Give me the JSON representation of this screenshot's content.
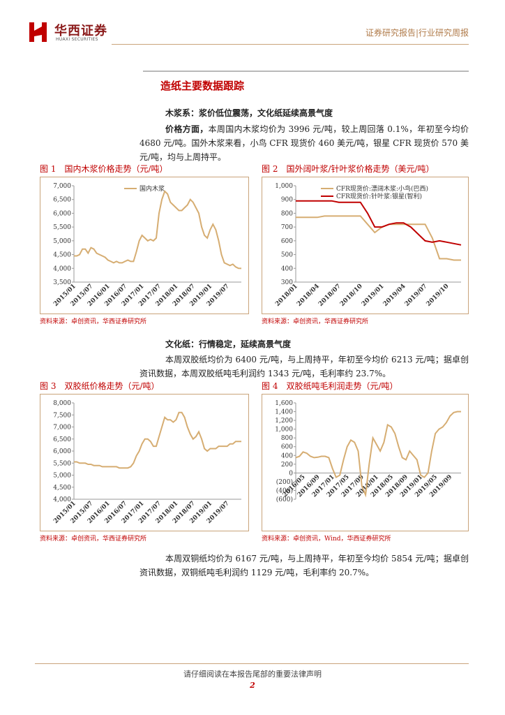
{
  "header": {
    "brand": "华西证券",
    "brand_en": "HUAXI SECURITIES",
    "report_type": "证券研究报告|行业研究周报"
  },
  "section_title": "造纸主要数据跟踪",
  "subheadings": [
    "木浆系：浆价低位震荡，文化纸延续高景气度",
    "文化纸：行情稳定，延续高景气度"
  ],
  "paragraphs": [
    {
      "lead": "价格方面，",
      "text": "本周国内木浆均价为 3996 元/吨，较上周回落 0.1%，年初至今均价 4680 元/吨。国外木浆来看，小鸟 CFR 现货价 460 美元/吨，银星 CFR 现货价 570 美元/吨，均与上周持平。"
    },
    {
      "text": "本周双胶纸均价为 6400 元/吨，与上周持平，年初至今均价 6213 元/吨；据卓创资讯数据，本周双胶纸吨毛利润约 1343 元/吨，毛利率约 23.7%。"
    },
    {
      "text": "本周双铜纸均价为 6167 元/吨，与上周持平，年初至今均价 5854 元/吨；据卓创资讯数据，双铜纸吨毛利润约 1129 元/吨，毛利率约 20.7%。"
    }
  ],
  "figures": [
    {
      "caption": "图 1　国内木浆价格走势（元/吨）",
      "source": "资料来源：卓创资讯，华西证券研究所",
      "chart": {
        "type": "line",
        "legend": "top",
        "categories": [
          "2015/01",
          null,
          null,
          null,
          null,
          null,
          "2015/07",
          null,
          null,
          null,
          null,
          null,
          "2016/01",
          null,
          null,
          null,
          null,
          null,
          "2016/07",
          null,
          null,
          null,
          null,
          null,
          "2017/01",
          null,
          null,
          null,
          null,
          null,
          "2017/07",
          null,
          null,
          null,
          null,
          null,
          "2018/01",
          null,
          null,
          null,
          null,
          null,
          "2018/07",
          null,
          null,
          null,
          null,
          null,
          "2019/01",
          null,
          null,
          null,
          null,
          null,
          "2019/07",
          null,
          null,
          null,
          null,
          null
        ],
        "series": [
          {
            "name": "国内木浆",
            "color": "#d6ad72",
            "values": [
              4450,
              4450,
              4500,
              4700,
              4700,
              4550,
              4750,
              4700,
              4550,
              4500,
              4450,
              4400,
              4300,
              4250,
              4200,
              4250,
              4200,
              4200,
              4250,
              4300,
              4250,
              4250,
              4600,
              5000,
              5200,
              5100,
              5000,
              5050,
              5000,
              5100,
              6000,
              6500,
              6800,
              6700,
              6400,
              6300,
              6200,
              6100,
              6100,
              6200,
              6300,
              6500,
              6400,
              6200,
              6000,
              5500,
              5200,
              5100,
              5400,
              5600,
              5400,
              5000,
              4500,
              4200,
              4150,
              4100,
              4150,
              4050,
              4000,
              3996
            ]
          }
        ],
        "ylim": [
          3500,
          7000
        ],
        "yticks": [
          {
            "value": 3500,
            "label": "3,500"
          },
          {
            "value": 4000,
            "label": "4,000"
          },
          {
            "value": 4500,
            "label": "4,500"
          },
          {
            "value": 5000,
            "label": "5,000"
          },
          {
            "value": 5500,
            "label": "5,500"
          },
          {
            "value": 6000,
            "label": "6,000"
          },
          {
            "value": 6500,
            "label": "6,500"
          },
          {
            "value": 7000,
            "label": "7,000"
          }
        ],
        "grid": false
      }
    },
    {
      "caption": "图 2　国外阔叶浆/针叶浆价格走势（美元/吨）",
      "source": "资料来源：卓创资讯，华西证券研究所",
      "chart": {
        "type": "line",
        "legend": "top-left",
        "categories": [
          "2018/01",
          null,
          null,
          "2018/04",
          null,
          null,
          "2018/07",
          null,
          null,
          "2018/10",
          null,
          null,
          "2019/01",
          null,
          null,
          "2019/04",
          null,
          null,
          "2019/07",
          null,
          null,
          "2019/10",
          null,
          null
        ],
        "series": [
          {
            "name": "CFR现货价:漂阔木浆:小鸟(巴西)",
            "color": "#d6ad72",
            "values": [
              770,
              770,
              770,
              770,
              780,
              780,
              780,
              780,
              780,
              780,
              720,
              660,
              700,
              720,
              720,
              720,
              720,
              720,
              720,
              620,
              470,
              470,
              460,
              460
            ]
          },
          {
            "name": "CFR现货价:针叶浆:银星(智利)",
            "color": "#c00000",
            "values": [
              890,
              890,
              890,
              890,
              890,
              890,
              880,
              880,
              880,
              880,
              800,
              700,
              700,
              720,
              730,
              730,
              700,
              650,
              600,
              590,
              600,
              590,
              580,
              570
            ]
          }
        ],
        "ylim": [
          300,
          1000
        ],
        "yticks": [
          300,
          400,
          500,
          600,
          700,
          800,
          900,
          {
            "value": 1000,
            "label": "1,000"
          }
        ],
        "grid": false
      }
    },
    {
      "caption": "图 3　双胶纸价格走势（元/吨）",
      "source": "资料来源：卓创资讯，华西证券研究所",
      "chart": {
        "type": "line",
        "categories": [
          "2015/01",
          null,
          null,
          null,
          null,
          null,
          "2015/07",
          null,
          null,
          null,
          null,
          null,
          "2016/01",
          null,
          null,
          null,
          null,
          null,
          "2016/07",
          null,
          null,
          null,
          null,
          null,
          "2017/01",
          null,
          null,
          null,
          null,
          null,
          "2017/07",
          null,
          null,
          null,
          null,
          null,
          "2018/01",
          null,
          null,
          null,
          null,
          null,
          "2018/07",
          null,
          null,
          null,
          null,
          null,
          "2019/01",
          null,
          null,
          null,
          null,
          null,
          "2019/07",
          null,
          null,
          null,
          null,
          null
        ],
        "series": [
          {
            "name": "双胶纸",
            "color": "#d6ad72",
            "values": [
              5550,
              5550,
              5500,
              5500,
              5500,
              5450,
              5450,
              5400,
              5400,
              5400,
              5350,
              5350,
              5350,
              5350,
              5350,
              5350,
              5300,
              5300,
              5300,
              5300,
              5350,
              5500,
              5800,
              6000,
              6300,
              6500,
              6500,
              6400,
              6200,
              6200,
              6600,
              7000,
              7400,
              7300,
              7300,
              7200,
              7300,
              7600,
              7600,
              7400,
              7000,
              6700,
              6500,
              6600,
              6800,
              6500,
              6100,
              6000,
              6100,
              6100,
              6100,
              6200,
              6200,
              6200,
              6200,
              6300,
              6300,
              6400,
              6400,
              6400
            ]
          }
        ],
        "ylim": [
          4000,
          8000
        ],
        "yticks": [
          {
            "value": 4000,
            "label": "4,000"
          },
          {
            "value": 4500,
            "label": "4,500"
          },
          {
            "value": 5000,
            "label": "5,000"
          },
          {
            "value": 5500,
            "label": "5,500"
          },
          {
            "value": 6000,
            "label": "6,000"
          },
          {
            "value": 6500,
            "label": "6,500"
          },
          {
            "value": 7000,
            "label": "7,000"
          },
          {
            "value": 7500,
            "label": "7,500"
          },
          {
            "value": 8000,
            "label": "8,000"
          }
        ],
        "grid": false
      }
    },
    {
      "caption": "图 4　双胶纸吨毛利润走势（元/吨）",
      "source": "资料来源：卓创资讯，Wind，华西证券研究所",
      "chart": {
        "type": "line",
        "categories": [
          null,
          null,
          "2016/05",
          null,
          null,
          null,
          "2016/09",
          null,
          null,
          null,
          "2017/01",
          null,
          null,
          null,
          "2017/05",
          null,
          null,
          null,
          "2017/09",
          null,
          null,
          null,
          "2018/01",
          null,
          null,
          null,
          "2018/05",
          null,
          null,
          null,
          "2018/09",
          null,
          null,
          null,
          "2019/01",
          null,
          null,
          null,
          "2019/05",
          null,
          null,
          null,
          "2019/09",
          null,
          null,
          null
        ],
        "series": [
          {
            "name": "双胶纸吨毛利润",
            "color": "#d6ad72",
            "values": [
              350,
              380,
              480,
              450,
              380,
              350,
              360,
              380,
              380,
              350,
              100,
              -100,
              -50,
              300,
              600,
              750,
              700,
              500,
              -300,
              -500,
              200,
              800,
              650,
              500,
              700,
              1100,
              1050,
              900,
              600,
              350,
              300,
              500,
              400,
              300,
              -50,
              -100,
              0,
              500,
              900,
              1000,
              1050,
              1150,
              1300,
              1380,
              1400,
              1400
            ]
          }
        ],
        "ylim": [
          -600,
          1600
        ],
        "yticks": [
          {
            "value": -600,
            "label": "(600)"
          },
          {
            "value": -400,
            "label": "(400)"
          },
          {
            "value": -200,
            "label": "(200)"
          },
          0,
          200,
          400,
          600,
          800,
          {
            "value": 1000,
            "label": "1,000"
          },
          {
            "value": 1200,
            "label": "1,200"
          },
          {
            "value": 1400,
            "label": "1,400"
          },
          {
            "value": 1600,
            "label": "1,600"
          }
        ],
        "grid": false
      }
    }
  ],
  "footer": {
    "disclaimer": "请仔细阅读在本报告尾部的重要法律声明",
    "page": "2"
  }
}
